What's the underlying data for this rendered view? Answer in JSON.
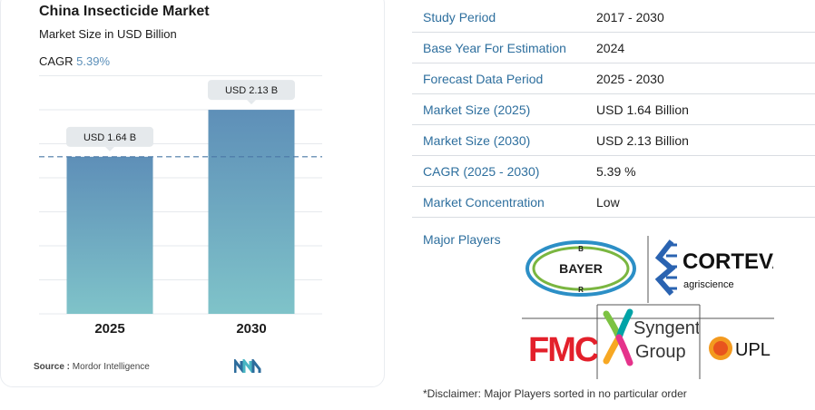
{
  "chart_data": {
    "type": "bar",
    "title": "China Insecticide Market",
    "subtitle": "Market Size in USD Billion",
    "cagr_label": "CAGR ",
    "cagr_value": "5.39%",
    "categories": [
      "2025",
      "2030"
    ],
    "values": [
      1.64,
      2.13
    ],
    "data_labels": [
      "USD 1.64 B",
      "USD 2.13 B"
    ],
    "ylim": [
      0,
      2.5
    ],
    "grid": true,
    "colors": {
      "bar_top": "#5e8fb8",
      "bar_bottom": "#7fc3c9",
      "reference_line": "#4a78a6"
    }
  },
  "source": {
    "label": "Source :",
    "text": "Mordor Intelligence"
  },
  "info_table": [
    {
      "key": "Study Period",
      "value": "2017 - 2030"
    },
    {
      "key": "Base Year For Estimation",
      "value": "2024"
    },
    {
      "key": "Forecast Data Period",
      "value": "2025 - 2030"
    },
    {
      "key": "Market Size (2025)",
      "value": "USD 1.64 Billion"
    },
    {
      "key": "Market Size (2030)",
      "value": "USD 2.13 Billion"
    },
    {
      "key": "CAGR (2025 - 2030)",
      "value": "5.39 %"
    },
    {
      "key": "Market Concentration",
      "value": "Low"
    }
  ],
  "major_players_label": "Major Players",
  "players": {
    "bayer": "BAYER",
    "corteva": "CORTEVA",
    "corteva_sub": "agriscience",
    "fmc": "FMC",
    "syngenta_1": "Syngenta",
    "syngenta_2": "Group",
    "upl": "UPL"
  },
  "disclaimer": "*Disclaimer: Major Players sorted in no particular order"
}
